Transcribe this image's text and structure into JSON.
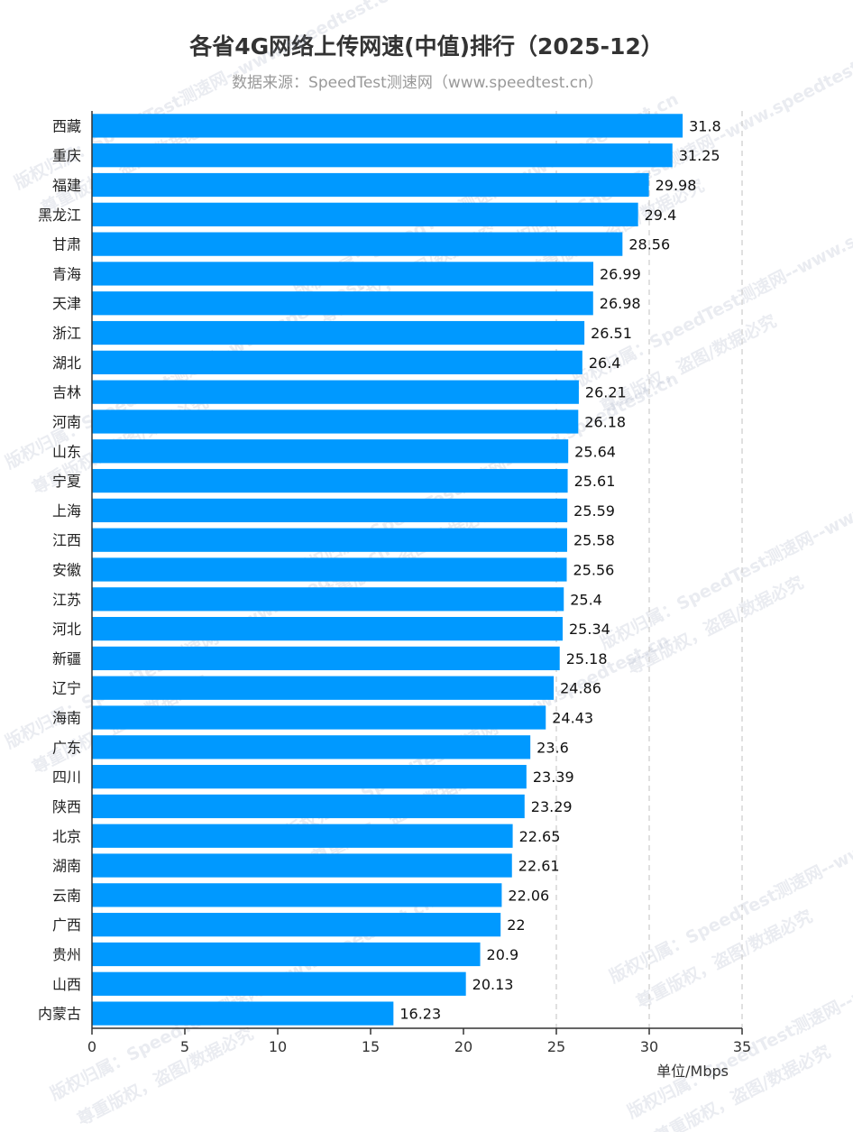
{
  "title": "各省4G网络上传网速(中值)排行（2025-12）",
  "subtitle": "数据来源：SpeedTest测速网（www.speedtest.cn）",
  "watermark": {
    "line1": "版权归属：SpeedTest测速网--www.speedtest.cn",
    "line2": "尊重版权，盗图/数据必究"
  },
  "colors": {
    "bar": "#0099ff",
    "grid": "#cccccc",
    "axis": "#333333"
  },
  "chart_data": {
    "type": "bar",
    "orientation": "horizontal",
    "title": "各省4G网络上传网速(中值)排行（2025-12）",
    "xlabel": "单位/Mbps",
    "xlim": [
      0,
      35
    ],
    "xticks": [
      0,
      5,
      10,
      15,
      20,
      25,
      30,
      35
    ],
    "grid": "vertical dashed at 25, 30, 35",
    "categories": [
      "西藏",
      "重庆",
      "福建",
      "黑龙江",
      "甘肃",
      "青海",
      "天津",
      "浙江",
      "湖北",
      "吉林",
      "河南",
      "山东",
      "宁夏",
      "上海",
      "江西",
      "安徽",
      "江苏",
      "河北",
      "新疆",
      "辽宁",
      "海南",
      "广东",
      "四川",
      "陕西",
      "北京",
      "湖南",
      "云南",
      "广西",
      "贵州",
      "山西",
      "内蒙古"
    ],
    "values": [
      31.8,
      31.25,
      29.98,
      29.4,
      28.56,
      26.99,
      26.98,
      26.51,
      26.4,
      26.21,
      26.18,
      25.64,
      25.61,
      25.59,
      25.58,
      25.56,
      25.4,
      25.34,
      25.18,
      24.86,
      24.43,
      23.6,
      23.39,
      23.29,
      22.65,
      22.61,
      22.06,
      22,
      20.9,
      20.13,
      16.23
    ],
    "value_labels": [
      "31.8",
      "31.25",
      "29.98",
      "29.4",
      "28.56",
      "26.99",
      "26.98",
      "26.51",
      "26.4",
      "26.21",
      "26.18",
      "25.64",
      "25.61",
      "25.59",
      "25.58",
      "25.56",
      "25.4",
      "25.34",
      "25.18",
      "24.86",
      "24.43",
      "23.6",
      "23.39",
      "23.29",
      "22.65",
      "22.61",
      "22.06",
      "22",
      "20.9",
      "20.13",
      "16.23"
    ]
  }
}
